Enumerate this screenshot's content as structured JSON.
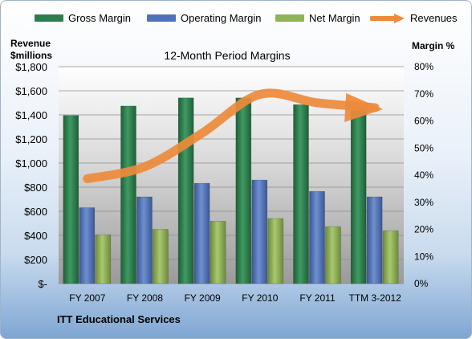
{
  "chart_data": {
    "type": "bar",
    "title": "12-Month Period Margins",
    "footer": "ITT Educational Services",
    "categories": [
      "FY 2007",
      "FY 2008",
      "FY 2009",
      "FY 2010",
      "FY 2011",
      "TTM 3-2012"
    ],
    "series": [
      {
        "name": "Gross Margin",
        "axis": "right",
        "color": "#2e7d4f",
        "values": [
          62,
          65.5,
          68.5,
          68.5,
          66,
          65
        ]
      },
      {
        "name": "Operating Margin",
        "axis": "right",
        "color": "#4f71b8",
        "values": [
          28,
          32,
          37,
          38.2,
          34,
          32
        ]
      },
      {
        "name": "Net Margin",
        "axis": "right",
        "color": "#8fb356",
        "values": [
          18,
          20,
          23,
          24,
          21,
          19.5
        ]
      }
    ],
    "line_series": {
      "name": "Revenues",
      "axis": "left",
      "color": "#ed8a3b",
      "values": [
        870,
        970,
        1250,
        1570,
        1500,
        1460
      ]
    },
    "left_axis": {
      "title": "Revenue $millions",
      "title_lines": [
        "Revenue",
        "$millions"
      ],
      "ylim": [
        0,
        1800
      ],
      "tick_labels": [
        "$-",
        "$200",
        "$400",
        "$600",
        "$800",
        "$1,000",
        "$1,200",
        "$1,400",
        "$1,600",
        "$1,800"
      ]
    },
    "right_axis": {
      "title": "Margin %",
      "ylim": [
        0,
        80
      ],
      "tick_labels": [
        "0%",
        "10%",
        "20%",
        "30%",
        "40%",
        "50%",
        "60%",
        "70%",
        "80%"
      ]
    },
    "grid": true,
    "legend_position": "top"
  }
}
